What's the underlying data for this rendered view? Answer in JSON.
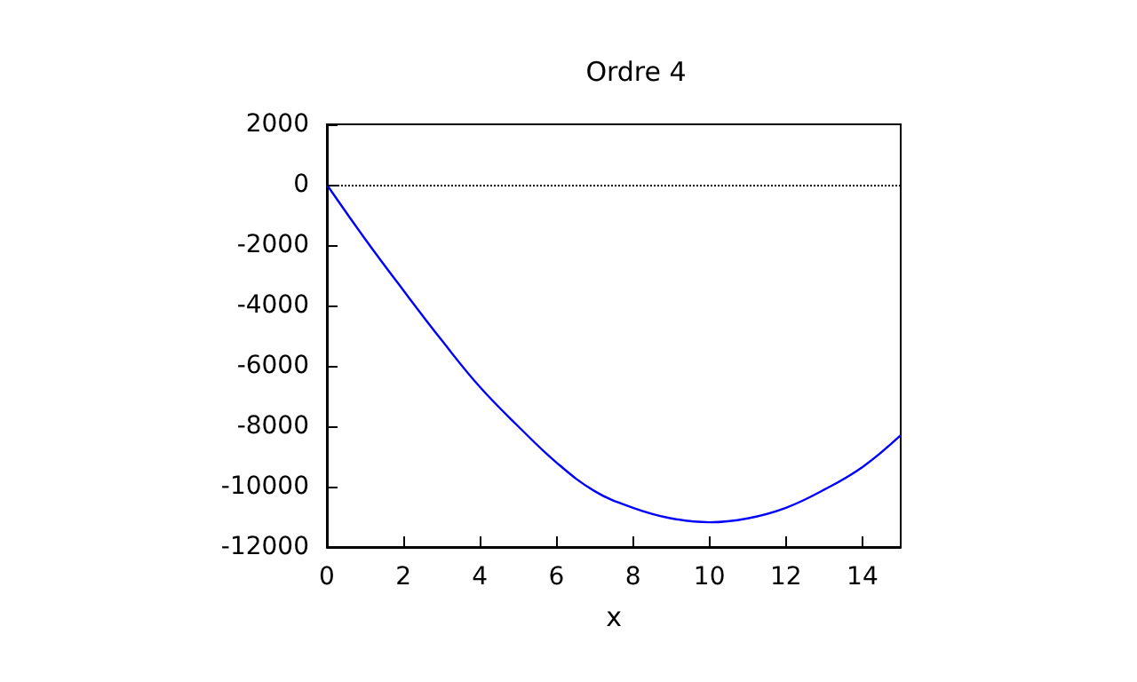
{
  "chart_data": {
    "type": "line",
    "title": "Ordre 4",
    "xlabel": "x",
    "x": [
      0,
      1,
      2,
      3,
      4,
      5,
      6,
      7,
      8,
      9,
      10,
      11,
      12,
      13,
      14,
      15
    ],
    "series": [
      {
        "color": "#0000ff",
        "values": [
          0,
          -1800,
          -3500,
          -5150,
          -6700,
          -8000,
          -9200,
          -10150,
          -10700,
          -11050,
          -11180,
          -11050,
          -10700,
          -10100,
          -9350,
          -8300
        ]
      }
    ],
    "xlim": [
      0,
      15
    ],
    "xticks": [
      0,
      2,
      4,
      6,
      8,
      10,
      12,
      14
    ],
    "ylim": [
      -12000,
      2000
    ],
    "yticks": [
      -12000,
      -10000,
      -8000,
      -6000,
      -4000,
      -2000,
      0,
      2000
    ],
    "ref_lines": [
      {
        "axis": "y",
        "value": 0,
        "color": "#000000",
        "line_style": "dotted"
      }
    ],
    "grid": false,
    "marker": "none",
    "line_style": "solid"
  }
}
